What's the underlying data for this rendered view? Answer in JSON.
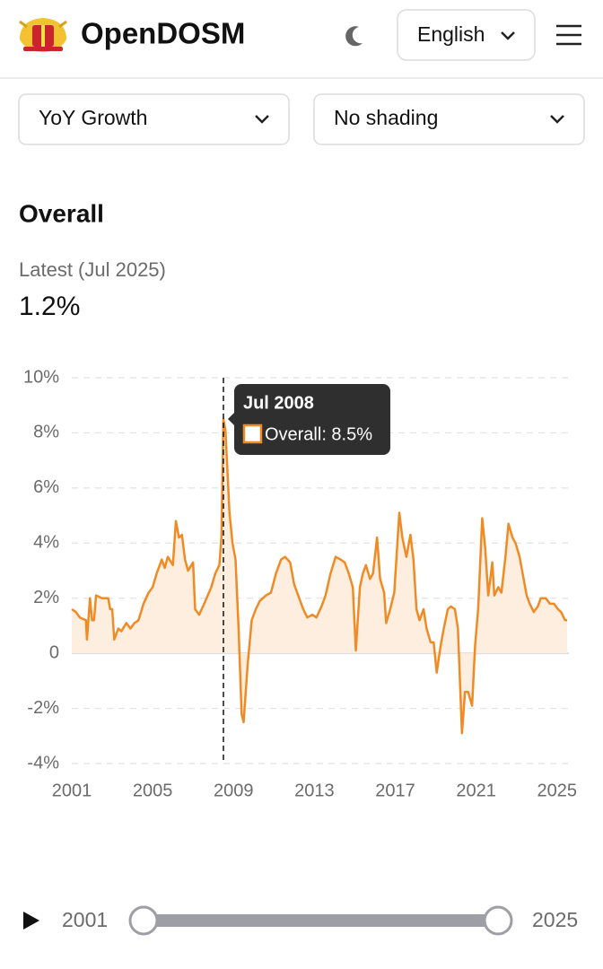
{
  "header": {
    "brand": "OpenDOSM",
    "language": "English"
  },
  "controls": {
    "measure": "YoY Growth",
    "shading": "No shading"
  },
  "chart_data": {
    "type": "line",
    "title": "Overall",
    "latest_label": "Latest (Jul 2025)",
    "latest_value": "1.2%",
    "xlim": [
      2001,
      2025.5
    ],
    "xticks": [
      2001,
      2005,
      2009,
      2013,
      2017,
      2021,
      2025
    ],
    "ylim": [
      -4,
      10
    ],
    "yticks": [
      {
        "value": -4,
        "label": "-4%"
      },
      {
        "value": -2,
        "label": "-2%"
      },
      0,
      {
        "value": 2,
        "label": "2%"
      },
      {
        "value": 4,
        "label": "4%"
      },
      {
        "value": 6,
        "label": "6%"
      },
      {
        "value": 8,
        "label": "8%"
      },
      {
        "value": 10,
        "label": "10%"
      }
    ],
    "grid": true,
    "area_color": "#fdeedf",
    "x": [
      2001,
      2001.2,
      2001.4,
      2001.7,
      2001.75,
      2001.9,
      2002,
      2002.1,
      2002.2,
      2002.5,
      2002.8,
      2002.9,
      2003,
      2003.1,
      2003.3,
      2003.45,
      2003.7,
      2003.9,
      2004.1,
      2004.3,
      2004.55,
      2004.8,
      2005,
      2005.2,
      2005.45,
      2005.6,
      2005.75,
      2006,
      2006.15,
      2006.3,
      2006.45,
      2006.6,
      2006.75,
      2007,
      2007.1,
      2007.3,
      2007.55,
      2007.9,
      2008.1,
      2008.3,
      2008.4,
      2008.5,
      2008.6,
      2008.8,
      2008.95,
      2009.1,
      2009.25,
      2009.4,
      2009.5,
      2009.7,
      2009.9,
      2010.1,
      2010.3,
      2010.6,
      2010.85,
      2011.1,
      2011.35,
      2011.55,
      2011.8,
      2012,
      2012.2,
      2012.45,
      2012.65,
      2012.9,
      2013.1,
      2013.35,
      2013.55,
      2013.8,
      2014.05,
      2014.3,
      2014.5,
      2014.7,
      2014.9,
      2015.05,
      2015.25,
      2015.4,
      2015.55,
      2015.75,
      2015.9,
      2016.1,
      2016.25,
      2016.45,
      2016.55,
      2016.75,
      2016.95,
      2017.2,
      2017.35,
      2017.55,
      2017.75,
      2017.9,
      2018.05,
      2018.2,
      2018.4,
      2018.55,
      2018.75,
      2018.9,
      2019.05,
      2019.25,
      2019.4,
      2019.6,
      2019.75,
      2019.95,
      2020.1,
      2020.3,
      2020.45,
      2020.6,
      2020.8,
      2020.95,
      2021.1,
      2021.3,
      2021.45,
      2021.6,
      2021.8,
      2021.9,
      2022.1,
      2022.25,
      2022.45,
      2022.6,
      2022.8,
      2022.95,
      2023.15,
      2023.3,
      2023.5,
      2023.65,
      2023.85,
      2024.05,
      2024.2,
      2024.45,
      2024.65,
      2024.85,
      2025.05,
      2025.2,
      2025.4,
      2025.5
    ],
    "series": [
      {
        "name": "Overall",
        "color": "#f08a24",
        "values": [
          1.6,
          1.5,
          1.3,
          1.2,
          0.5,
          2.0,
          1.2,
          1.2,
          2.1,
          2.0,
          2.0,
          1.6,
          1.6,
          0.5,
          0.9,
          0.8,
          1.1,
          0.9,
          1.1,
          1.2,
          1.8,
          2.2,
          2.4,
          2.9,
          3.4,
          3.1,
          3.5,
          3.2,
          4.8,
          4.2,
          4.3,
          3.4,
          3.0,
          3.3,
          1.6,
          1.4,
          1.8,
          2.4,
          2.9,
          3.2,
          4.2,
          8.5,
          8.1,
          5.1,
          4.0,
          3.4,
          0.9,
          -2.2,
          -2.5,
          -0.4,
          1.2,
          1.6,
          1.9,
          2.1,
          2.2,
          2.9,
          3.4,
          3.5,
          3.3,
          2.5,
          2.1,
          1.6,
          1.3,
          1.4,
          1.3,
          1.7,
          2.1,
          2.9,
          3.5,
          3.4,
          3.3,
          2.9,
          2.4,
          0.1,
          2.4,
          2.9,
          3.2,
          2.7,
          2.9,
          4.2,
          2.7,
          2.2,
          1.1,
          1.6,
          2.2,
          5.1,
          4.2,
          3.5,
          4.3,
          3.4,
          1.6,
          1.2,
          1.6,
          0.9,
          0.4,
          0.4,
          -0.7,
          0.3,
          0.9,
          1.6,
          1.7,
          1.6,
          0.9,
          -2.9,
          -1.4,
          -1.4,
          -1.9,
          0.3,
          1.6,
          4.9,
          3.8,
          2.1,
          3.3,
          2.1,
          2.4,
          2.2,
          3.5,
          4.7,
          4.2,
          4.0,
          3.5,
          2.9,
          2.1,
          1.8,
          1.5,
          1.7,
          2.0,
          2.0,
          1.8,
          1.8,
          1.6,
          1.5,
          1.2,
          1.2
        ]
      }
    ],
    "tooltip": {
      "date": "Jul 2008",
      "text": "Overall: 8.5%",
      "x": 2008.5
    }
  },
  "slider": {
    "start": 2001,
    "end": 2025
  }
}
